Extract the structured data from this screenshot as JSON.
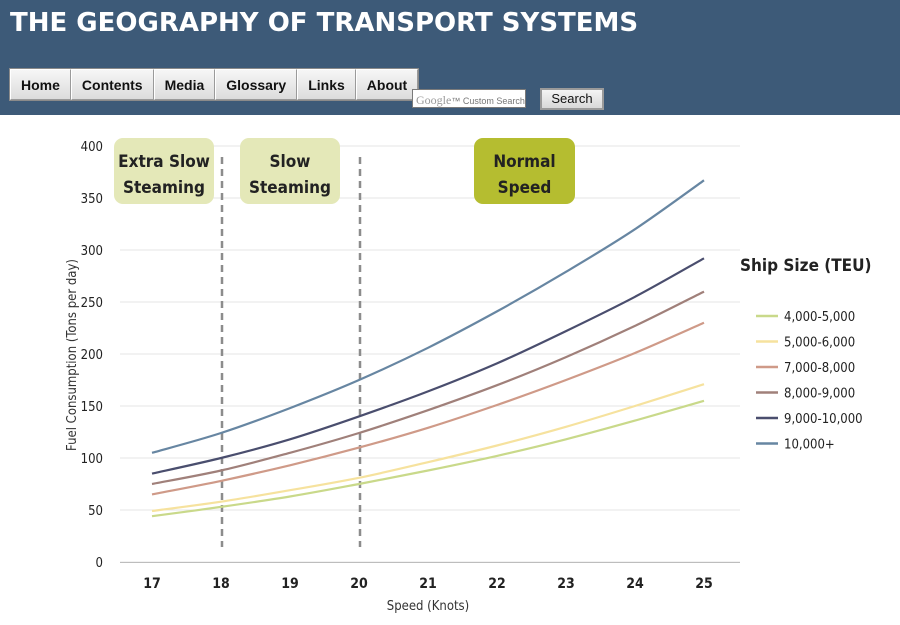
{
  "header": {
    "title": "THE GEOGRAPHY OF TRANSPORT SYSTEMS",
    "nav": [
      "Home",
      "Contents",
      "Media",
      "Glossary",
      "Links",
      "About"
    ],
    "search": {
      "brand": "Google",
      "placeholder": "Custom Search",
      "button_label": "Search"
    }
  },
  "colors": {
    "header_bg": "#3d5a78",
    "normal_badge": "#b5bd30",
    "slow_badge": "#e4e8b8"
  },
  "chart_data": {
    "type": "line",
    "xlabel": "Speed (Knots)",
    "ylabel": "Fuel Consumption (Tons per day)",
    "x": [
      17,
      18,
      19,
      20,
      21,
      22,
      23,
      24,
      25
    ],
    "ylim": [
      0,
      400
    ],
    "yticks": [
      0,
      50,
      100,
      150,
      200,
      250,
      300,
      350,
      400
    ],
    "legend_title": "Ship Size (TEU)",
    "legend_position": "right",
    "series": [
      {
        "name": "4,000-5,000",
        "color": "#c9d98a",
        "values": [
          44,
          53,
          63,
          75,
          88,
          102,
          118,
          136,
          155
        ]
      },
      {
        "name": "5,000-6,000",
        "color": "#f6e29e",
        "values": [
          49,
          58,
          69,
          81,
          96,
          112,
          130,
          150,
          171
        ]
      },
      {
        "name": "7,000-8,000",
        "color": "#cf9a88",
        "values": [
          65,
          78,
          93,
          110,
          129,
          151,
          175,
          201,
          230
        ]
      },
      {
        "name": "8,000-9,000",
        "color": "#a0807a",
        "values": [
          75,
          88,
          105,
          124,
          146,
          170,
          197,
          227,
          260
        ]
      },
      {
        "name": "9,000-10,000",
        "color": "#4a4e6e",
        "values": [
          85,
          100,
          118,
          140,
          164,
          191,
          222,
          255,
          292
        ]
      },
      {
        "name": "10,000+",
        "color": "#6786a2",
        "values": [
          105,
          124,
          148,
          175,
          206,
          241,
          279,
          320,
          367
        ]
      }
    ],
    "regions": [
      {
        "label": [
          "Extra Slow",
          "Steaming"
        ]
      },
      {
        "label": [
          "Slow",
          "Steaming"
        ]
      },
      {
        "label": [
          "Normal",
          "Speed"
        ]
      }
    ],
    "dividers_at_speed": [
      18,
      20
    ]
  }
}
